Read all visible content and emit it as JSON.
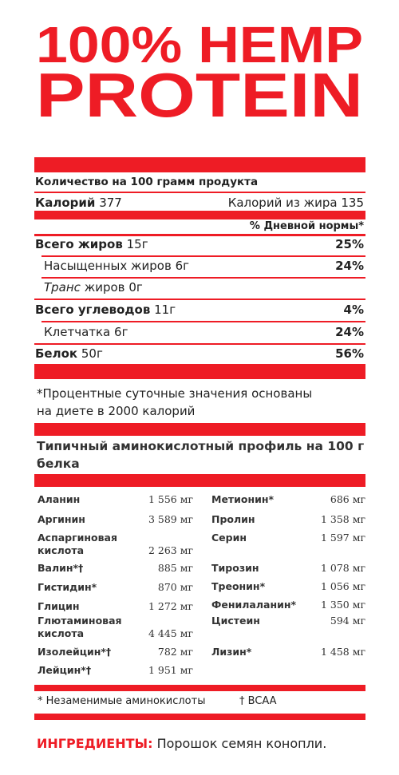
{
  "header": {
    "title_line1": "100% HEMP",
    "title_line2": "PROTEIN"
  },
  "nutrition": {
    "serving": "Количество на 100 грамм продукта",
    "calories": {
      "label": "Калорий",
      "value": "377"
    },
    "fat_calories": {
      "label": "Калорий из жира",
      "value": "135"
    },
    "daily_value_header": "% Дневной нормы*",
    "rows": [
      {
        "label": "Всего жиров",
        "amount": "15г",
        "percent": "25%"
      },
      {
        "label": "Насыщенных жиров",
        "amount": "6г",
        "percent": "24%"
      },
      {
        "label_italic": "Транс",
        "label": "жиров",
        "amount": "0г"
      },
      {
        "label": "Всего углеводов",
        "amount": "11г",
        "percent": "4%"
      },
      {
        "label": "Клетчатка",
        "amount": "6г",
        "percent": "24%"
      },
      {
        "label": "Белок",
        "amount": "50г",
        "percent": "56%"
      }
    ],
    "footnote": [
      "*Процентные суточные значения основаны",
      "на диете в 2000 калорий"
    ]
  },
  "amino": {
    "title": "Типичный аминокислотный профиль на 100 г белка",
    "left": [
      {
        "name": "Аланин",
        "value": "1 556 мг"
      },
      {
        "name": "Аргинин",
        "value": "3 589 мг"
      },
      {
        "name": "Аспаргиновая кислота",
        "value": "2 263 мг"
      },
      {
        "name": "Валин*†",
        "value": "885 мг"
      },
      {
        "name": "Гистидин*",
        "value": "870 мг"
      },
      {
        "name": "Глицин",
        "value": "1 272 мг"
      },
      {
        "name": "Глютаминовая кислота",
        "value": "4 445 мг"
      },
      {
        "name": "Изолейцин*†",
        "value": "782 мг"
      },
      {
        "name": "Лейцин*†",
        "value": "1 951 мг"
      }
    ],
    "right": [
      {
        "name": "Метионин*",
        "value": "686 мг"
      },
      {
        "name": "Пролин",
        "value": "1 358 мг"
      },
      {
        "name": "Серин",
        "value": "1 597 мг"
      },
      {
        "name": "Тирозин",
        "value": "1 078 мг"
      },
      {
        "name": "Треонин*",
        "value": "1 056 мг"
      },
      {
        "name": "Фенилаланин*",
        "value": "1 350 мг"
      },
      {
        "name": "Цистеин",
        "value": "594 мг"
      },
      {
        "name": "Лизин*",
        "value": "1 458 мг"
      }
    ],
    "legend": {
      "essential": "* Незаменимые аминокислоты",
      "bcaa": "† BCAA"
    }
  },
  "ingredients": {
    "label": "ИНГРЕДИЕНТЫ:",
    "text": "Порошок семян конопли."
  }
}
